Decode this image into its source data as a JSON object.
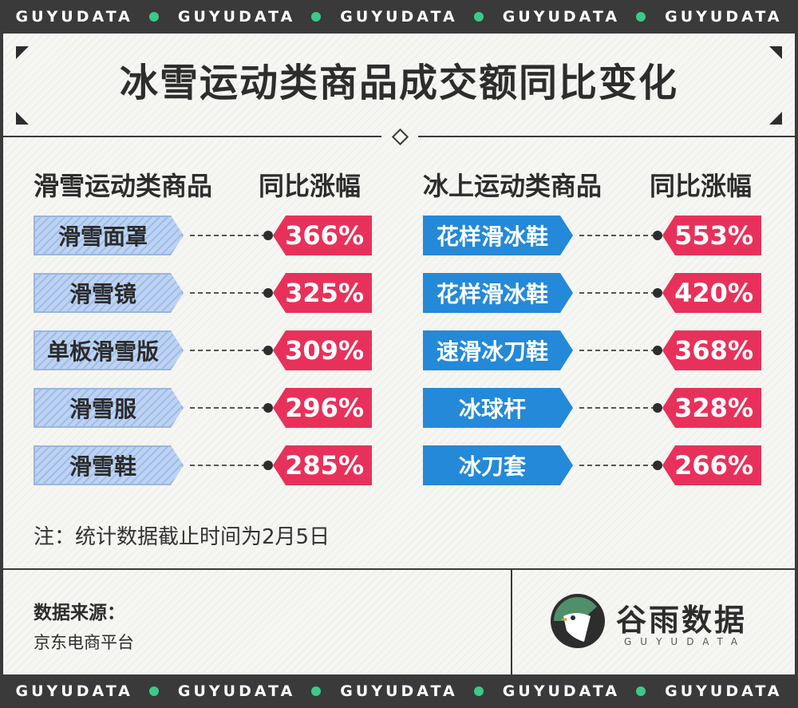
{
  "strip": {
    "words": [
      "GUYUDATA",
      "GUYUDATA",
      "GUYUDATA",
      "GUYUDATA",
      "GUYUDATA"
    ]
  },
  "title": "冰雪运动类商品成交额同比变化",
  "left": {
    "category_header": "滑雪运动类商品",
    "value_header": "同比涨幅"
  },
  "right": {
    "category_header": "冰上运动类商品",
    "value_header": "同比涨幅"
  },
  "chart_data": [
    {
      "type": "table",
      "title": "冰雪运动类商品成交额同比变化",
      "columns": [
        "滑雪运动类商品",
        "同比涨幅"
      ],
      "categories": [
        "滑雪面罩",
        "滑雪镜",
        "单板滑雪版",
        "滑雪服",
        "滑雪鞋"
      ],
      "values": [
        366,
        325,
        309,
        296,
        285
      ],
      "labels": [
        "366%",
        "325%",
        "309%",
        "296%",
        "285%"
      ]
    },
    {
      "type": "table",
      "columns": [
        "冰上运动类商品",
        "同比涨幅"
      ],
      "categories": [
        "花样滑冰鞋",
        "花样滑冰鞋",
        "速滑冰刀鞋",
        "冰球杆",
        "冰刀套"
      ],
      "values": [
        553,
        420,
        368,
        328,
        266
      ],
      "labels": [
        "553%",
        "420%",
        "368%",
        "328%",
        "266%"
      ]
    }
  ],
  "note": "注：统计数据截止时间为2月5日",
  "source": {
    "label": "数据来源：",
    "value": "京东电商平台"
  },
  "logo": {
    "name": "谷雨数据",
    "sub": "GUYUDATA"
  },
  "colors": {
    "ski_tag": "#bcd3f3",
    "ice_tag": "#2489d8",
    "value_tag": "#e8315a",
    "strip_dot": "#3cc98b",
    "frame": "#3a3a3a"
  }
}
